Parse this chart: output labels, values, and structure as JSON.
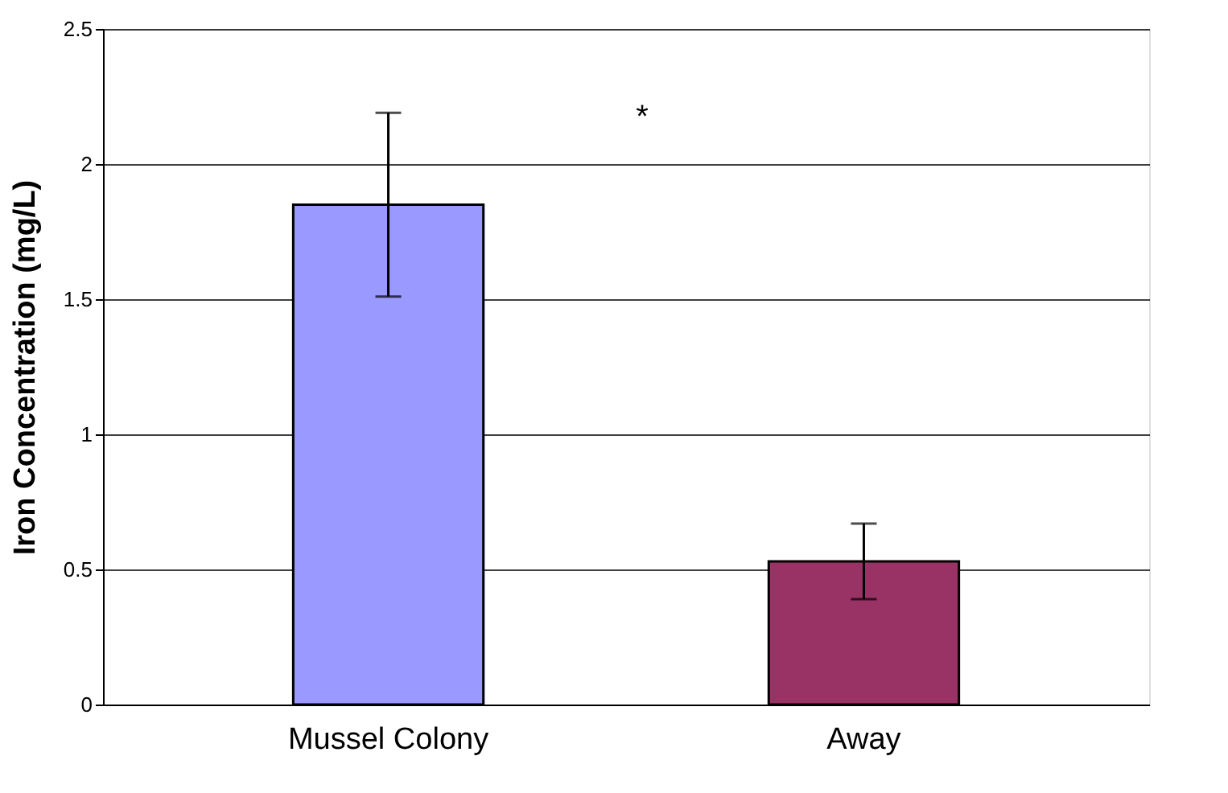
{
  "chart_data": {
    "type": "bar",
    "ylabel": "Iron Concentration (mg/L)",
    "categories": [
      "Mussel Colony",
      "Away"
    ],
    "values": [
      1.85,
      0.53
    ],
    "colors": [
      "#9999ff",
      "#993366"
    ],
    "errors": [
      [
        1.51,
        2.19
      ],
      [
        0.39,
        0.67
      ]
    ],
    "ylim": [
      0,
      2.5
    ],
    "yticks": [
      0,
      0.5,
      1,
      1.5,
      2,
      2.5
    ],
    "grid": "y",
    "annotations": [
      "*"
    ]
  }
}
